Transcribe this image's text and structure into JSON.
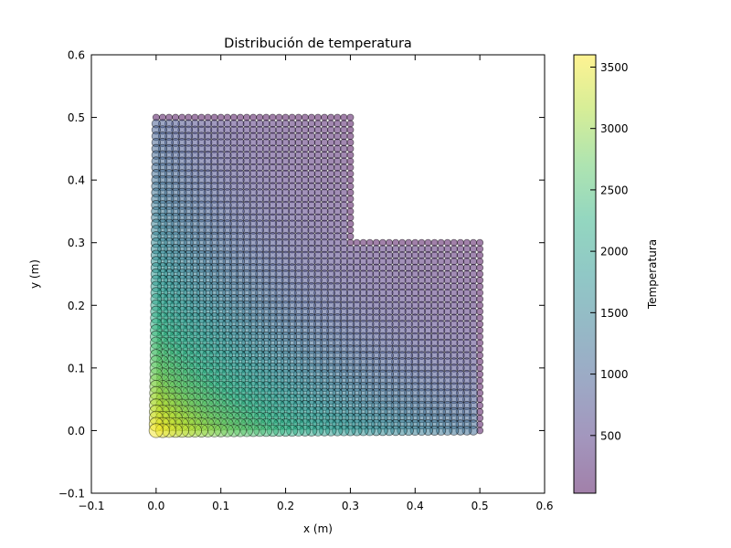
{
  "chart_data": {
    "type": "scatter",
    "title": "Distribución de temperatura",
    "xlabel": "x (m)",
    "ylabel": "y (m)",
    "xlim": [
      -0.1,
      0.6
    ],
    "ylim": [
      -0.1,
      0.6
    ],
    "x_ticks": [
      "−0.1",
      "0.0",
      "0.1",
      "0.2",
      "0.3",
      "0.4",
      "0.5",
      "0.6"
    ],
    "y_ticks": [
      "−0.1",
      "0.0",
      "0.1",
      "0.2",
      "0.3",
      "0.4",
      "0.5",
      "0.6"
    ],
    "grid": false,
    "colormap": "viridis",
    "marker_alpha": 0.5,
    "colorbar": {
      "label": "Temperatura",
      "range": [
        30,
        3600
      ],
      "ticks": [
        "500",
        "1000",
        "1500",
        "2000",
        "2500",
        "3000",
        "3500"
      ]
    },
    "domain_description": "L-shaped plate: x from 0.0 to 0.5 for y 0.0 to 0.3; x from 0.0 to 0.3 for y 0.3 to 0.5",
    "grid_points": {
      "nx": 51,
      "ny": 51,
      "step": 0.01
    },
    "temperature_profile": [
      {
        "x": 0.0,
        "y": 0.0,
        "temperature": 3600
      },
      {
        "x": 0.1,
        "y": 0.0,
        "temperature": 2900
      },
      {
        "x": 0.2,
        "y": 0.0,
        "temperature": 1500
      },
      {
        "x": 0.3,
        "y": 0.0,
        "temperature": 650
      },
      {
        "x": 0.5,
        "y": 0.0,
        "temperature": 30
      },
      {
        "x": 0.0,
        "y": 0.1,
        "temperature": 2500
      },
      {
        "x": 0.0,
        "y": 0.2,
        "temperature": 1600
      },
      {
        "x": 0.0,
        "y": 0.3,
        "temperature": 950
      },
      {
        "x": 0.0,
        "y": 0.4,
        "temperature": 450
      },
      {
        "x": 0.0,
        "y": 0.5,
        "temperature": 30
      },
      {
        "x": 0.3,
        "y": 0.3,
        "temperature": 30
      },
      {
        "x": 0.5,
        "y": 0.3,
        "temperature": 30
      }
    ]
  }
}
